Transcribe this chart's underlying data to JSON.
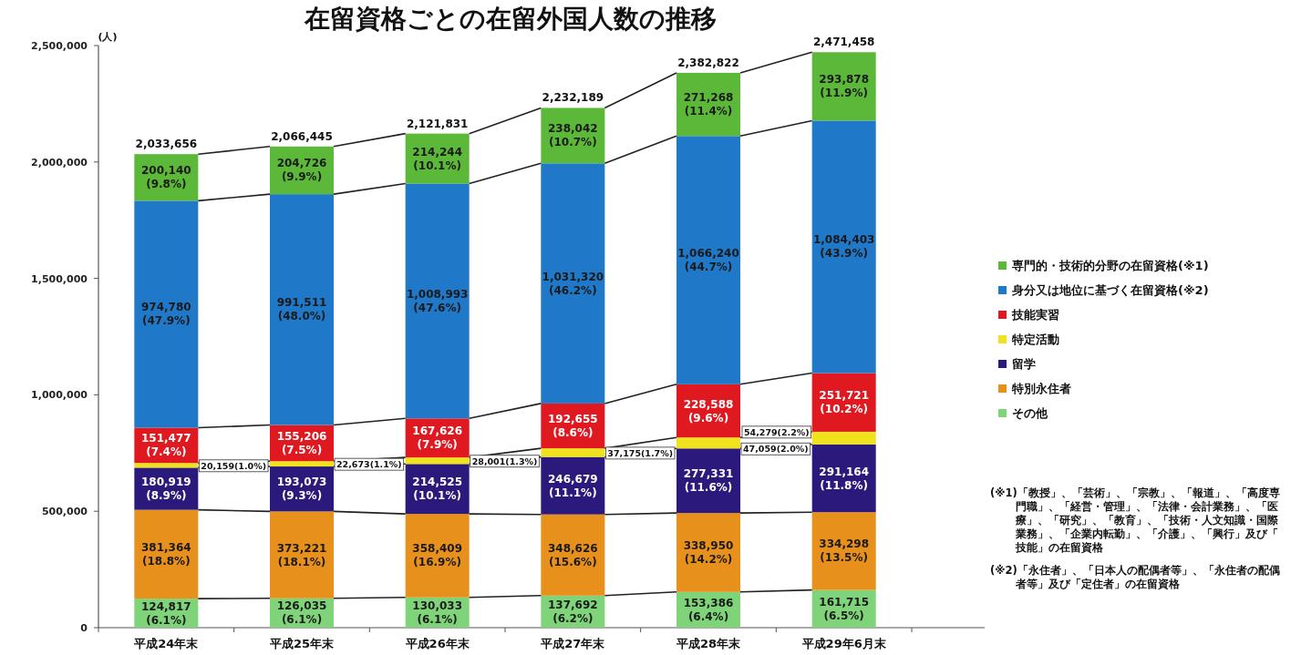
{
  "chart_data": {
    "type": "bar",
    "stacked": true,
    "title": "在留資格ごとの在留外国人数の推移",
    "ylabel": "(人)",
    "categories": [
      "平成24年末",
      "平成25年末",
      "平成26年末",
      "平成27年末",
      "平成28年末",
      "平成29年6月末"
    ],
    "ylim": [
      0,
      2500000
    ],
    "yticks": [
      {
        "value": 0,
        "label": "0"
      },
      {
        "value": 500000,
        "label": "500,000"
      },
      {
        "value": 1000000,
        "label": "1,000,000"
      },
      {
        "value": 1500000,
        "label": "1,500,000"
      },
      {
        "value": 2000000,
        "label": "2,000,000"
      },
      {
        "value": 2500000,
        "label": "2,500,000"
      }
    ],
    "legend": "right",
    "series": [
      {
        "name": "その他",
        "color": "#7fd47a",
        "values": [
          124817,
          126035,
          130033,
          137692,
          153386,
          161715
        ],
        "value_labels": [
          "124,817\n(6.1%)",
          "126,035\n(6.1%)",
          "130,033\n(6.1%)",
          "137,692\n(6.2%)",
          "153,386\n(6.4%)",
          "161,715\n(6.5%)"
        ]
      },
      {
        "name": "特別永住者",
        "color": "#e8901c",
        "values": [
          381364,
          373221,
          358409,
          348626,
          338950,
          334298
        ],
        "value_labels": [
          "381,364\n(18.8%)",
          "373,221\n(18.1%)",
          "358,409\n(16.9%)",
          "348,626\n(15.6%)",
          "338,950\n(14.2%)",
          "334,298\n(13.5%)"
        ]
      },
      {
        "name": "留学",
        "color": "#2b1a7c",
        "values": [
          180919,
          193073,
          214525,
          246679,
          277331,
          291164
        ],
        "value_labels": [
          "180,919\n(8.9%)",
          "193,073\n(9.3%)",
          "214,525\n(10.1%)",
          "246,679\n(11.1%)",
          "277,331\n(11.6%)",
          "291,164\n(11.8%)"
        ]
      },
      {
        "name": "特定活動",
        "color": "#f0e21c",
        "values": [
          20159,
          22673,
          28001,
          37175,
          47059,
          54279
        ],
        "value_labels": [
          "20,159(1.0%)",
          "22,673(1.1%)",
          "28,001(1.3%)",
          "37,175(1.7%)",
          "47,059(2.0%)",
          "54,279(2.2%)"
        ]
      },
      {
        "name": "技能実習",
        "color": "#e01820",
        "values": [
          151477,
          155206,
          167626,
          192655,
          228588,
          251721
        ],
        "value_labels": [
          "151,477\n(7.4%)",
          "155,206\n(7.5%)",
          "167,626\n(7.9%)",
          "192,655\n(8.6%)",
          "228,588\n(9.6%)",
          "251,721\n(10.2%)"
        ]
      },
      {
        "name": "身分又は地位に基づく在留資格(※2)",
        "color": "#1f78c8",
        "values": [
          974780,
          991511,
          1008993,
          1031320,
          1066240,
          1084403
        ],
        "value_labels": [
          "974,780\n(47.9%)",
          "991,511\n(48.0%)",
          "1,008,993\n(47.6%)",
          "1,031,320\n(46.2%)",
          "1,066,240\n(44.7%)",
          "1,084,403\n(43.9%)"
        ]
      },
      {
        "name": "専門的・技術的分野の在留資格(※1)",
        "color": "#5cb838",
        "values": [
          200140,
          204726,
          214244,
          238042,
          271268,
          293878
        ],
        "value_labels": [
          "200,140\n(9.8%)",
          "204,726\n(9.9%)",
          "214,244\n(10.1%)",
          "238,042\n(10.7%)",
          "271,268\n(11.4%)",
          "293,878\n(11.9%)"
        ]
      }
    ],
    "totals": [
      "2,033,656",
      "2,066,445",
      "2,121,831",
      "2,232,189",
      "2,382,822",
      "2,471,458"
    ],
    "annotations": [
      "(※1)「教授」、「芸術」、「宗教」、「報道」、「高度専門職」、「経営・管理」、「法律・会計業務」、「医療」、「研究」、「教育」、「技術・人文知識・国際業務」、「企業内転勤」、「介護」、「興行」及び「技能」の在留資格",
      "(※2)「永住者」、「日本人の配偶者等」、「永住者の配偶者等」及び「定住者」の在留資格"
    ]
  }
}
